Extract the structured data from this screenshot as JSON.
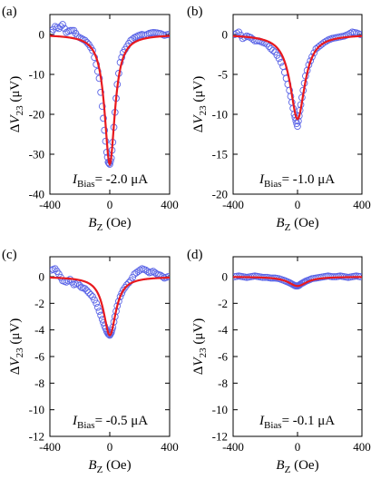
{
  "chart_data": [
    {
      "panel": "(a)",
      "type": "scatter",
      "xlabel": "B_Z (Oe)",
      "ylabel": "ΔV_23 (μV)",
      "xlim": [
        -400,
        400
      ],
      "ylim": [
        -40,
        5
      ],
      "xticks": [
        -400,
        0,
        400
      ],
      "yticks": [
        0,
        -10,
        -20,
        -30,
        -40
      ],
      "annotation": {
        "symbol": "I",
        "subscript": "Bias",
        "value": "= -2.0 μA"
      },
      "fit": {
        "baseline": 0,
        "depth": -32.5,
        "halfwidth": 42
      },
      "series": [
        {
          "type": "scatter",
          "marker": "circle",
          "color": "#5a64e6",
          "x": [
            -390,
            -365,
            -340,
            -315,
            -290,
            -265,
            -240,
            -215,
            -190,
            -165,
            -140,
            -115,
            -90,
            -70,
            -50,
            -35,
            -20,
            -10,
            0,
            10,
            20,
            35,
            50,
            70,
            90,
            115,
            140,
            165,
            190,
            215,
            240,
            265,
            290,
            315,
            340,
            365,
            390
          ],
          "y": [
            0.5,
            2.0,
            1.5,
            2.5,
            0.5,
            1.0,
            1.0,
            -0.5,
            -1.0,
            -1.5,
            -2.5,
            -4.0,
            -7.5,
            -11.0,
            -18.0,
            -24.0,
            -29.5,
            -32.0,
            -32.5,
            -31.0,
            -27.0,
            -19.5,
            -12.5,
            -7.0,
            -4.5,
            -3.0,
            -1.5,
            -0.8,
            -0.3,
            0.0,
            -0.2,
            0.3,
            0.5,
            0.4,
            0.2,
            -0.2,
            0.0
          ]
        },
        {
          "type": "line",
          "name": "",
          "color": "#e8191e",
          "source": "fit"
        }
      ]
    },
    {
      "panel": "(b)",
      "type": "scatter",
      "xlabel": "B_Z (Oe)",
      "ylabel": "ΔV_23 (μV)",
      "xlim": [
        -400,
        400
      ],
      "ylim": [
        -20,
        2.5
      ],
      "xticks": [
        -400,
        0,
        400
      ],
      "yticks": [
        0,
        -5,
        -10,
        -15,
        -20
      ],
      "annotation": {
        "symbol": "I",
        "subscript": "Bias",
        "value": "= -1.0 μA"
      },
      "fit": {
        "baseline": 0,
        "depth": -10.6,
        "halfwidth": 55
      },
      "series": [
        {
          "type": "scatter",
          "marker": "circle",
          "color": "#5a64e6",
          "x": [
            -390,
            -365,
            -340,
            -315,
            -290,
            -265,
            -240,
            -215,
            -190,
            -165,
            -140,
            -115,
            -90,
            -70,
            -50,
            -35,
            -20,
            -10,
            0,
            10,
            20,
            35,
            50,
            70,
            90,
            115,
            140,
            165,
            190,
            215,
            240,
            265,
            290,
            315,
            340,
            365,
            390
          ],
          "y": [
            0.0,
            0.3,
            -0.5,
            -0.2,
            -0.4,
            -0.8,
            -0.8,
            -1.0,
            -1.2,
            -1.8,
            -2.2,
            -3.0,
            -4.0,
            -5.5,
            -7.0,
            -8.5,
            -10.0,
            -10.8,
            -11.5,
            -10.2,
            -8.8,
            -7.0,
            -5.2,
            -3.8,
            -2.8,
            -1.8,
            -1.4,
            -1.0,
            -0.7,
            -0.5,
            -0.4,
            -0.3,
            -0.2,
            0.0,
            0.3,
            0.2,
            0.0
          ]
        },
        {
          "type": "line",
          "name": "",
          "color": "#e8191e",
          "source": "fit"
        }
      ]
    },
    {
      "panel": "(c)",
      "type": "scatter",
      "xlabel": "B_Z (Oe)",
      "ylabel": "ΔV_23 (μV)",
      "xlim": [
        -400,
        400
      ],
      "ylim": [
        -12,
        1.5
      ],
      "xticks": [
        -400,
        0,
        400
      ],
      "yticks": [
        0,
        -2,
        -4,
        -6,
        -8,
        -10,
        -12
      ],
      "annotation": {
        "symbol": "I",
        "subscript": "Bias",
        "value": "= -0.5 μA"
      },
      "fit": {
        "baseline": 0,
        "depth": -4.4,
        "halfwidth": 50
      },
      "series": [
        {
          "type": "scatter",
          "marker": "circle",
          "color": "#5a64e6",
          "x": [
            -390,
            -365,
            -340,
            -315,
            -290,
            -265,
            -240,
            -215,
            -190,
            -165,
            -140,
            -115,
            -90,
            -70,
            -50,
            -35,
            -20,
            -10,
            0,
            10,
            20,
            35,
            50,
            70,
            90,
            115,
            140,
            165,
            190,
            215,
            240,
            265,
            290,
            315,
            340,
            365,
            390
          ],
          "y": [
            0.5,
            0.6,
            0.2,
            -0.3,
            -0.4,
            -0.2,
            -0.6,
            -0.5,
            -0.8,
            -0.9,
            -1.2,
            -1.5,
            -2.0,
            -2.6,
            -3.2,
            -3.7,
            -4.1,
            -4.3,
            -4.4,
            -4.2,
            -3.8,
            -3.0,
            -2.2,
            -1.5,
            -1.0,
            -0.6,
            -0.3,
            0.2,
            0.4,
            0.6,
            0.5,
            0.3,
            0.4,
            0.2,
            0.1,
            -0.1,
            0.0
          ]
        },
        {
          "type": "line",
          "name": "",
          "color": "#e8191e",
          "source": "fit"
        }
      ]
    },
    {
      "panel": "(d)",
      "type": "scatter",
      "xlabel": "B_Z (Oe)",
      "ylabel": "ΔV_23 (μV)",
      "xlim": [
        -400,
        400
      ],
      "ylim": [
        -12,
        1.5
      ],
      "xticks": [
        -400,
        0,
        400
      ],
      "yticks": [
        0,
        -2,
        -4,
        -6,
        -8,
        -10,
        -12
      ],
      "annotation": {
        "symbol": "I",
        "subscript": "Bias",
        "value": "= -0.1 μA"
      },
      "fit": {
        "baseline": 0,
        "depth": -0.7,
        "halfwidth": 70
      },
      "series": [
        {
          "type": "scatter",
          "marker": "circle",
          "color": "#5a64e6",
          "x": [
            -390,
            -365,
            -340,
            -315,
            -290,
            -265,
            -240,
            -215,
            -190,
            -165,
            -140,
            -115,
            -90,
            -70,
            -50,
            -35,
            -20,
            -10,
            0,
            10,
            20,
            35,
            50,
            70,
            90,
            115,
            140,
            165,
            190,
            215,
            240,
            265,
            290,
            315,
            340,
            365,
            390
          ],
          "y": [
            0.0,
            0.05,
            0.0,
            -0.05,
            0.0,
            0.05,
            0.0,
            -0.05,
            -0.05,
            -0.1,
            -0.1,
            -0.15,
            -0.25,
            -0.35,
            -0.45,
            -0.55,
            -0.65,
            -0.7,
            -0.7,
            -0.65,
            -0.55,
            -0.45,
            -0.35,
            -0.25,
            -0.15,
            -0.1,
            -0.05,
            0.0,
            0.05,
            0.0,
            0.0,
            0.05,
            0.0,
            -0.05,
            0.0,
            0.05,
            0.0
          ]
        },
        {
          "type": "line",
          "name": "",
          "color": "#e8191e",
          "source": "fit"
        }
      ]
    }
  ]
}
